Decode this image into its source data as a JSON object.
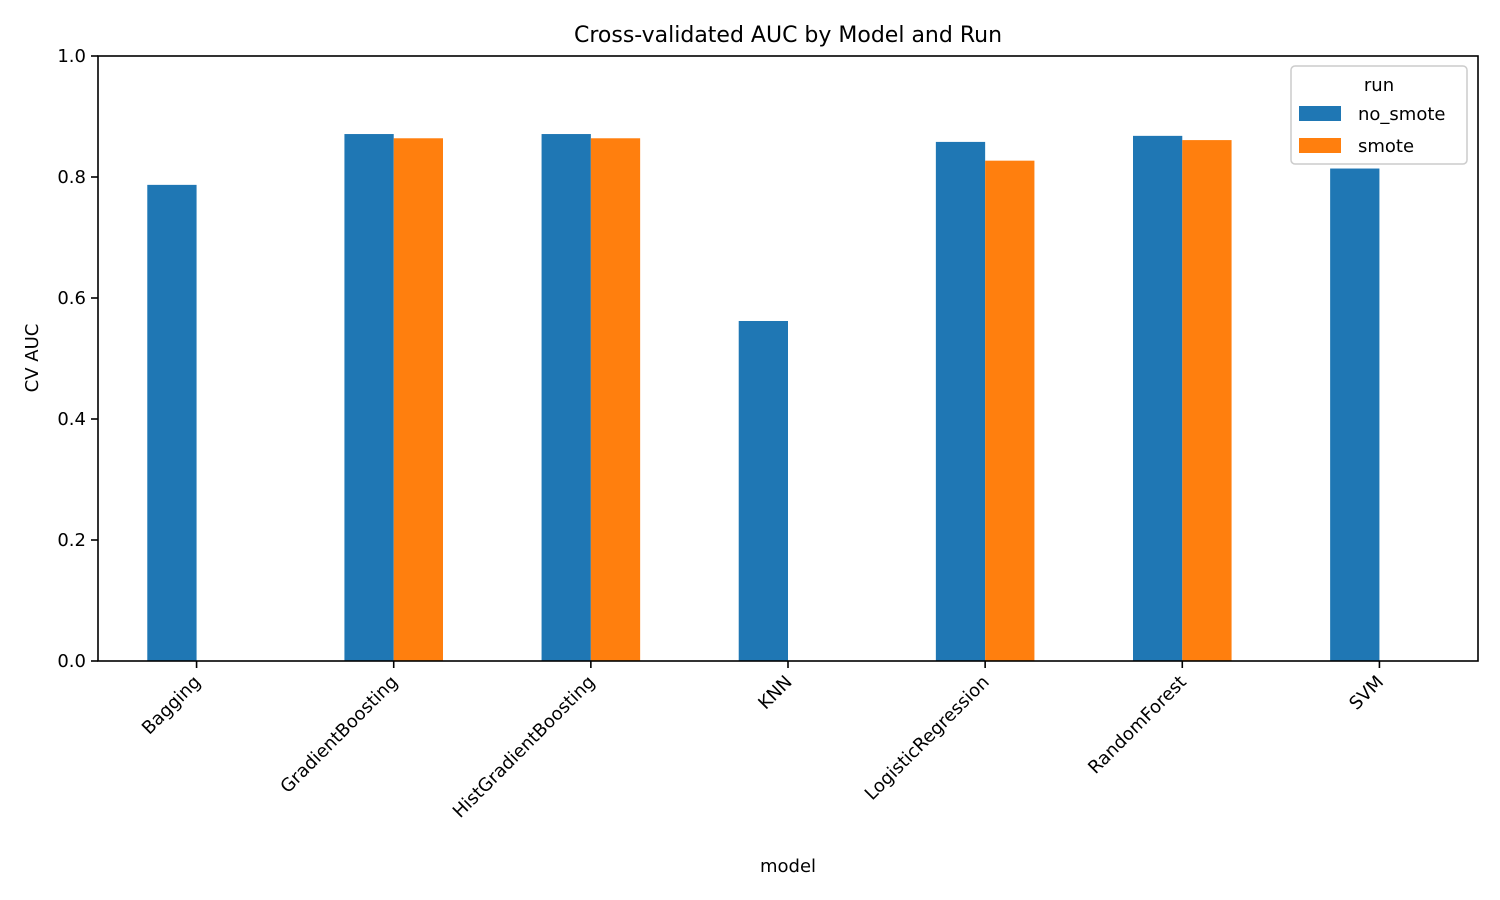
{
  "chart_data": {
    "type": "bar",
    "title": "Cross-validated AUC by Model and Run",
    "xlabel": "model",
    "ylabel": "CV AUC",
    "ylim": [
      0,
      1.0
    ],
    "yticks": [
      "0.0",
      "0.2",
      "0.4",
      "0.6",
      "0.8",
      "1.0"
    ],
    "categories": [
      "Bagging",
      "GradientBoosting",
      "HistGradientBoosting",
      "KNN",
      "LogisticRegression",
      "RandomForest",
      "SVM"
    ],
    "series": [
      {
        "name": "no_smote",
        "color": "#1f77b4",
        "values": [
          0.787,
          0.871,
          0.871,
          0.562,
          0.858,
          0.868,
          0.814
        ]
      },
      {
        "name": "smote",
        "color": "#ff7f0e",
        "values": [
          null,
          0.864,
          0.864,
          null,
          0.827,
          0.861,
          null
        ]
      }
    ],
    "legend": {
      "title": "run",
      "placement": "top-right"
    },
    "grid": false
  }
}
